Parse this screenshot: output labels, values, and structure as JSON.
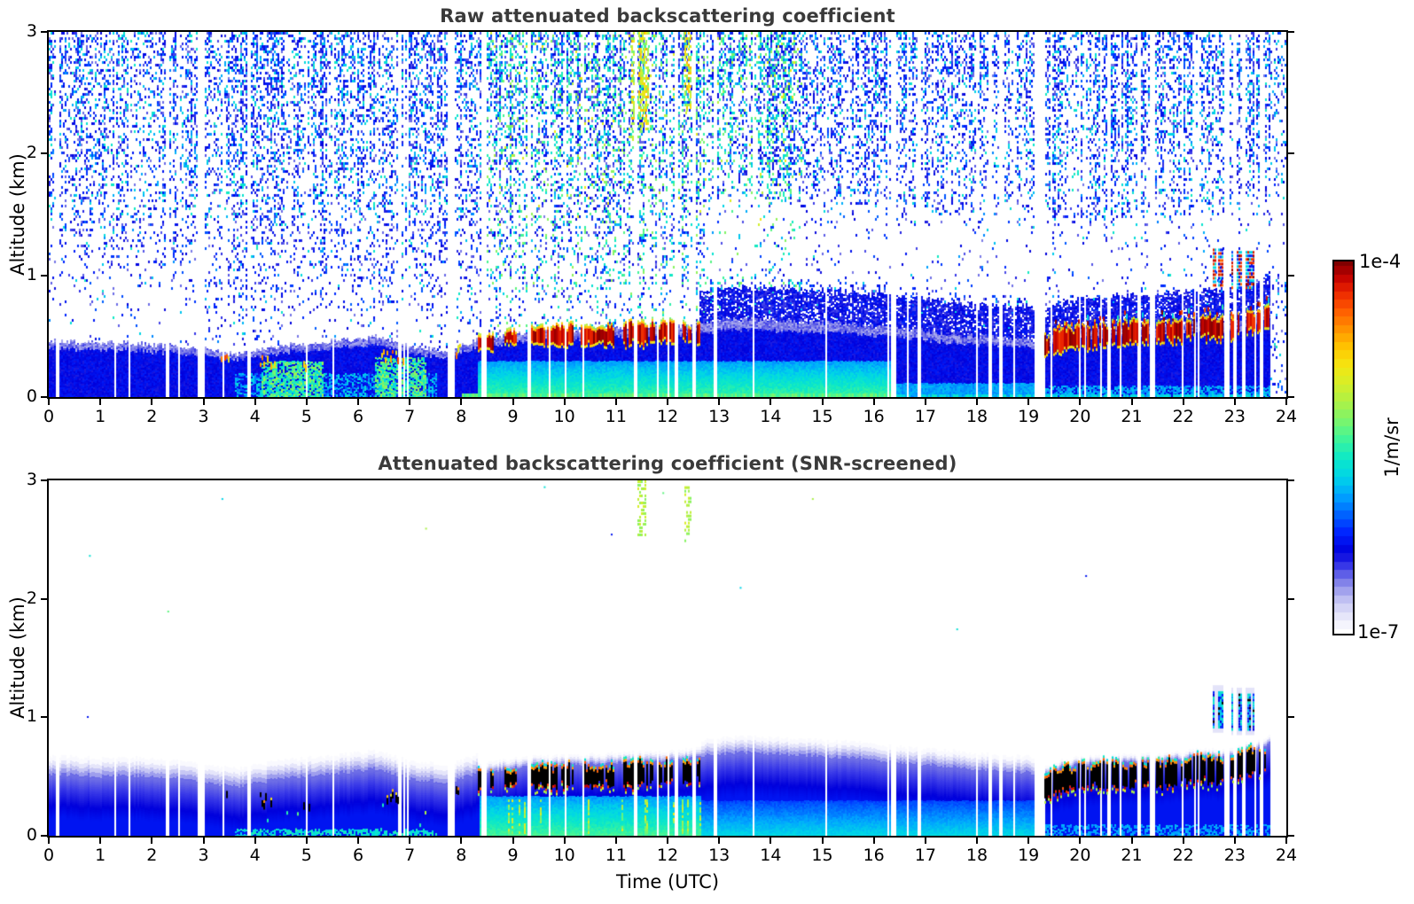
{
  "figure": {
    "xlabel": "Time (UTC)",
    "ylabel": "Altitude (km)",
    "background": "#ffffff",
    "title_color": "#3a3a3a"
  },
  "colorbar": {
    "max_label": "1e-4",
    "min_label": "1e-7",
    "units": "1/m/sr",
    "scale": "log",
    "top_color": "#800000",
    "bottom_color": "#ffffff"
  },
  "chart_data": [
    {
      "type": "heatmap",
      "title": "Raw attenuated backscattering coefficient",
      "xlabel": "",
      "ylabel": "Altitude (km)",
      "xlim": [
        0,
        24
      ],
      "ylim": [
        0,
        3
      ],
      "xticks": [
        0,
        1,
        2,
        3,
        4,
        5,
        6,
        7,
        8,
        9,
        10,
        11,
        12,
        13,
        14,
        15,
        16,
        17,
        18,
        19,
        20,
        21,
        22,
        23,
        24
      ],
      "yticks": [
        0,
        1,
        2,
        3
      ],
      "colorscale": {
        "min": "1e-7",
        "max": "1e-4",
        "units": "1/m/sr",
        "type": "log"
      },
      "colormap_stops": [
        [
          0,
          "#ffffff"
        ],
        [
          0.03,
          "#f0f0fc"
        ],
        [
          0.06,
          "#dcdcf8"
        ],
        [
          0.09,
          "#c0c0f2"
        ],
        [
          0.12,
          "#9a9aec"
        ],
        [
          0.15,
          "#6e6ee6"
        ],
        [
          0.18,
          "#3a3ae8"
        ],
        [
          0.22,
          "#0000dc"
        ],
        [
          0.27,
          "#0022ff"
        ],
        [
          0.32,
          "#0064ff"
        ],
        [
          0.37,
          "#00a4ff"
        ],
        [
          0.42,
          "#00d4e8"
        ],
        [
          0.47,
          "#0ce8c8"
        ],
        [
          0.52,
          "#3cf49c"
        ],
        [
          0.57,
          "#78f56e"
        ],
        [
          0.62,
          "#aaf148"
        ],
        [
          0.67,
          "#d4ef2a"
        ],
        [
          0.72,
          "#f4e612"
        ],
        [
          0.77,
          "#ffc400"
        ],
        [
          0.82,
          "#ff9000"
        ],
        [
          0.87,
          "#ff5a00"
        ],
        [
          0.92,
          "#ea2400"
        ],
        [
          0.96,
          "#c00000"
        ],
        [
          1,
          "#800000"
        ]
      ],
      "boundary_layer_top_km": {
        "hours": [
          0,
          0.5,
          1,
          1.5,
          2,
          2.5,
          3,
          3.3,
          3.7,
          4,
          4.5,
          5,
          5.5,
          6,
          6.3,
          6.6,
          7,
          7.3,
          7.7,
          8,
          8.3,
          8.7,
          9,
          9.5,
          10,
          10.5,
          11,
          11.5,
          12,
          12.4,
          12.7,
          13,
          13.5,
          14,
          14.5,
          15,
          15.5,
          16,
          16.5,
          17,
          17.5,
          18,
          18.5,
          19,
          19.3,
          19.6,
          20,
          20.5,
          21,
          21.5,
          22,
          22.4,
          22.8,
          23.2,
          23.65
        ],
        "km": [
          0.46,
          0.45,
          0.44,
          0.45,
          0.43,
          0.42,
          0.4,
          0.37,
          0.35,
          0.38,
          0.42,
          0.44,
          0.46,
          0.48,
          0.5,
          0.47,
          0.42,
          0.4,
          0.38,
          0.42,
          0.47,
          0.5,
          0.52,
          0.54,
          0.54,
          0.55,
          0.56,
          0.57,
          0.58,
          0.59,
          0.61,
          0.63,
          0.64,
          0.63,
          0.62,
          0.61,
          0.6,
          0.58,
          0.56,
          0.54,
          0.52,
          0.5,
          0.49,
          0.47,
          0.46,
          0.52,
          0.55,
          0.56,
          0.57,
          0.58,
          0.6,
          0.62,
          0.6,
          0.66,
          0.72
        ]
      },
      "data_gaps_hours": [
        [
          2.28,
          2.33
        ],
        [
          2.88,
          3.0
        ],
        [
          3.84,
          3.9
        ],
        [
          7.74,
          7.86
        ],
        [
          8.4,
          8.46
        ],
        [
          9.27,
          9.33
        ],
        [
          12.14,
          12.2
        ],
        [
          12.48,
          12.54
        ],
        [
          16.34,
          16.41
        ],
        [
          19.13,
          19.29
        ],
        [
          21.34,
          21.41
        ],
        [
          22.79,
          22.86
        ],
        [
          23.68,
          24.0
        ]
      ],
      "cloud_band_events": [
        {
          "t0": 8.33,
          "t1": 8.62,
          "alt": 0.46,
          "thick": 0.1
        },
        {
          "t0": 8.85,
          "t1": 9.05,
          "alt": 0.48,
          "thick": 0.08
        },
        {
          "t0": 9.36,
          "t1": 10.15,
          "alt": 0.5,
          "thick": 0.12
        },
        {
          "t0": 10.32,
          "t1": 10.95,
          "alt": 0.5,
          "thick": 0.11
        },
        {
          "t0": 11.15,
          "t1": 11.75,
          "alt": 0.52,
          "thick": 0.14
        },
        {
          "t0": 11.8,
          "t1": 12.12,
          "alt": 0.53,
          "thick": 0.12
        },
        {
          "t0": 12.3,
          "t1": 12.62,
          "alt": 0.53,
          "thick": 0.12
        },
        {
          "t0": 19.32,
          "t1": 23.65,
          "alt": "bl",
          "thick": 0.14
        }
      ],
      "low_intense_streaks": [
        {
          "t0": 3.35,
          "t1": 3.48,
          "alt": 0.34
        },
        {
          "t0": 4.1,
          "t1": 4.4,
          "alt": 0.32
        },
        {
          "t0": 4.95,
          "t1": 5.05,
          "alt": 0.3
        },
        {
          "t0": 6.45,
          "t1": 6.9,
          "alt": 0.36
        },
        {
          "t0": 7.86,
          "t1": 7.98,
          "alt": 0.4
        }
      ],
      "surface_green_layers": [
        {
          "t0": 4.1,
          "t1": 5.3,
          "a1": 0.3
        },
        {
          "t0": 6.3,
          "t1": 7.3,
          "a1": 0.33
        }
      ],
      "elevated_plumes": [
        {
          "t0": 11.3,
          "t1": 11.62,
          "a0": 2.2,
          "a1": 3.0
        },
        {
          "t0": 12.33,
          "t1": 12.47,
          "a0": 2.35,
          "a1": 3.0
        }
      ],
      "elevated_streaks": [
        {
          "t0": 22.58,
          "t1": 22.76,
          "a0": 0.92,
          "a1": 1.22
        },
        {
          "t0": 22.95,
          "t1": 23.35,
          "a0": 0.9,
          "a1": 1.2
        }
      ],
      "noise_regions": [
        {
          "hours": [
            0,
            2.6
          ],
          "density": 0.85,
          "cyan_frac": 0.18
        },
        {
          "hours": [
            2.6,
            8.4
          ],
          "density": 1.0,
          "cyan_frac": 0.2
        },
        {
          "hours": [
            8.4,
            14.6
          ],
          "density": 1.15,
          "cyan_frac": 0.45,
          "green": true
        },
        {
          "hours": [
            14.6,
            19
          ],
          "density": 1.0,
          "cyan_frac": 0.15
        },
        {
          "hours": [
            19,
            24
          ],
          "density": 1.0,
          "cyan_frac": 0.22
        }
      ]
    },
    {
      "type": "heatmap",
      "title": "Attenuated backscattering coefficient (SNR-screened)",
      "xlabel": "Time (UTC)",
      "ylabel": "Altitude (km)",
      "xlim": [
        0,
        24
      ],
      "ylim": [
        0,
        3
      ],
      "xticks": [
        0,
        1,
        2,
        3,
        4,
        5,
        6,
        7,
        8,
        9,
        10,
        11,
        12,
        13,
        14,
        15,
        16,
        17,
        18,
        19,
        20,
        21,
        22,
        23,
        24
      ],
      "yticks": [
        0,
        1,
        2,
        3
      ],
      "colorscale": {
        "min": "1e-7",
        "max": "1e-4",
        "units": "1/m/sr",
        "type": "log"
      },
      "saturated_black_events": "same clouds as raw panel rendered as over-range black with red/orange/yellow fringes",
      "cyan_subcloud_region_hours": [
        8.33,
        12.65
      ],
      "cyan_surface_region_hours": [
        12.65,
        19.1
      ],
      "green_elevated_blobs": [
        {
          "t0": 11.42,
          "t1": 11.58,
          "a0": 2.55,
          "a1": 3.0
        },
        {
          "t0": 12.33,
          "t1": 12.47,
          "a0": 2.5,
          "a1": 2.95
        }
      ],
      "isolated_specks": [
        {
          "t": 0.78,
          "a": 2.37
        },
        {
          "t": 0.74,
          "a": 1.01
        },
        {
          "t": 2.3,
          "a": 1.9
        },
        {
          "t": 3.35,
          "a": 2.85
        },
        {
          "t": 7.3,
          "a": 2.6
        },
        {
          "t": 9.6,
          "a": 2.95
        },
        {
          "t": 10.9,
          "a": 2.55
        },
        {
          "t": 11.9,
          "a": 2.9
        },
        {
          "t": 13.4,
          "a": 2.1
        },
        {
          "t": 14.8,
          "a": 2.85
        },
        {
          "t": 17.6,
          "a": 1.75
        },
        {
          "t": 20.1,
          "a": 2.2
        }
      ]
    }
  ]
}
